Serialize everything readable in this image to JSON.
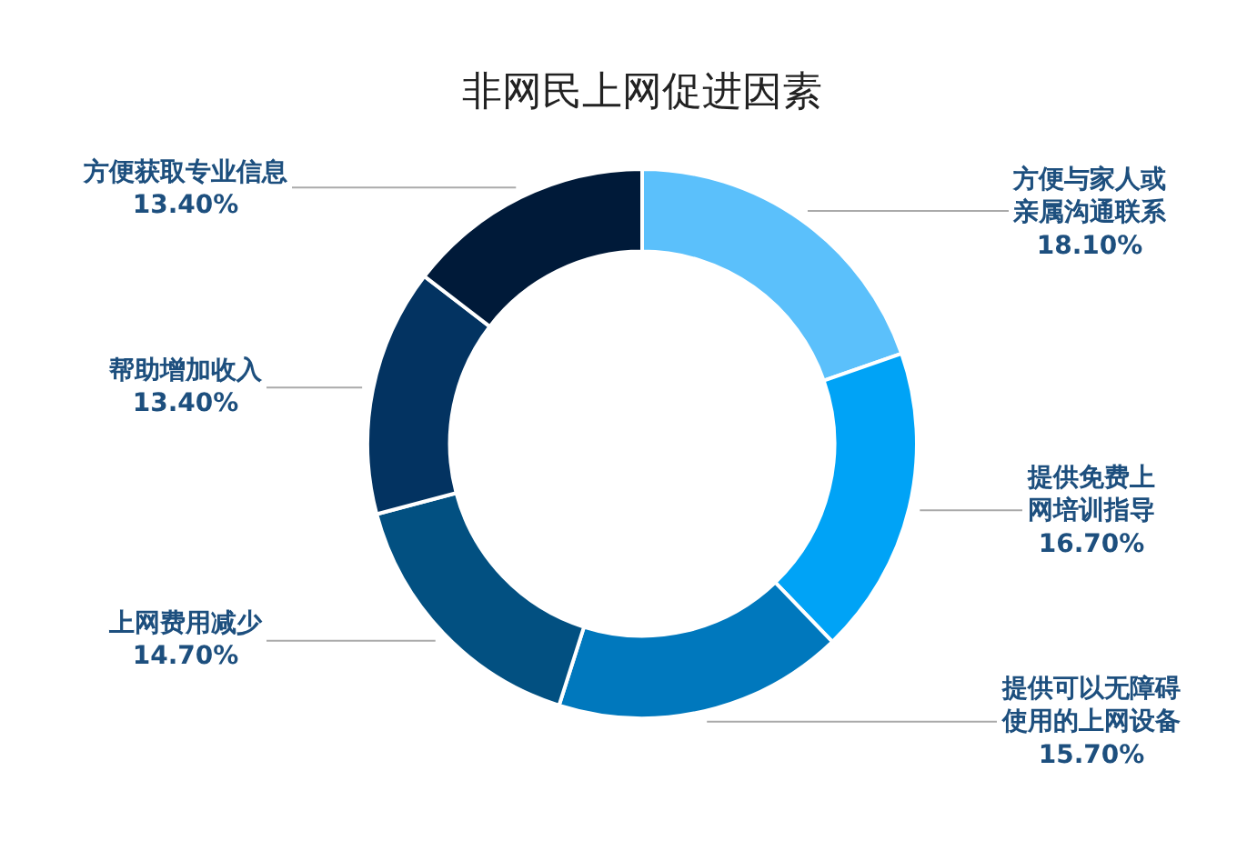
{
  "chart_data": {
    "type": "donut",
    "title": "非网民上网促进因素",
    "categories": [
      "方便与家人或亲属沟通联系",
      "提供免费上网培训指导",
      "提供可以无障碍使用的上网设备",
      "上网费用减少",
      "帮助增加收入",
      "方便获取专业信息"
    ],
    "values": [
      18.1,
      16.7,
      15.7,
      14.7,
      13.4,
      13.4
    ],
    "value_labels": [
      "18.10%",
      "16.70%",
      "15.70%",
      "14.70%",
      "13.40%",
      "13.40%"
    ],
    "colors": [
      "#5bc0fb",
      "#00a3f6",
      "#0078bd",
      "#025081",
      "#033361",
      "#001a39"
    ]
  }
}
